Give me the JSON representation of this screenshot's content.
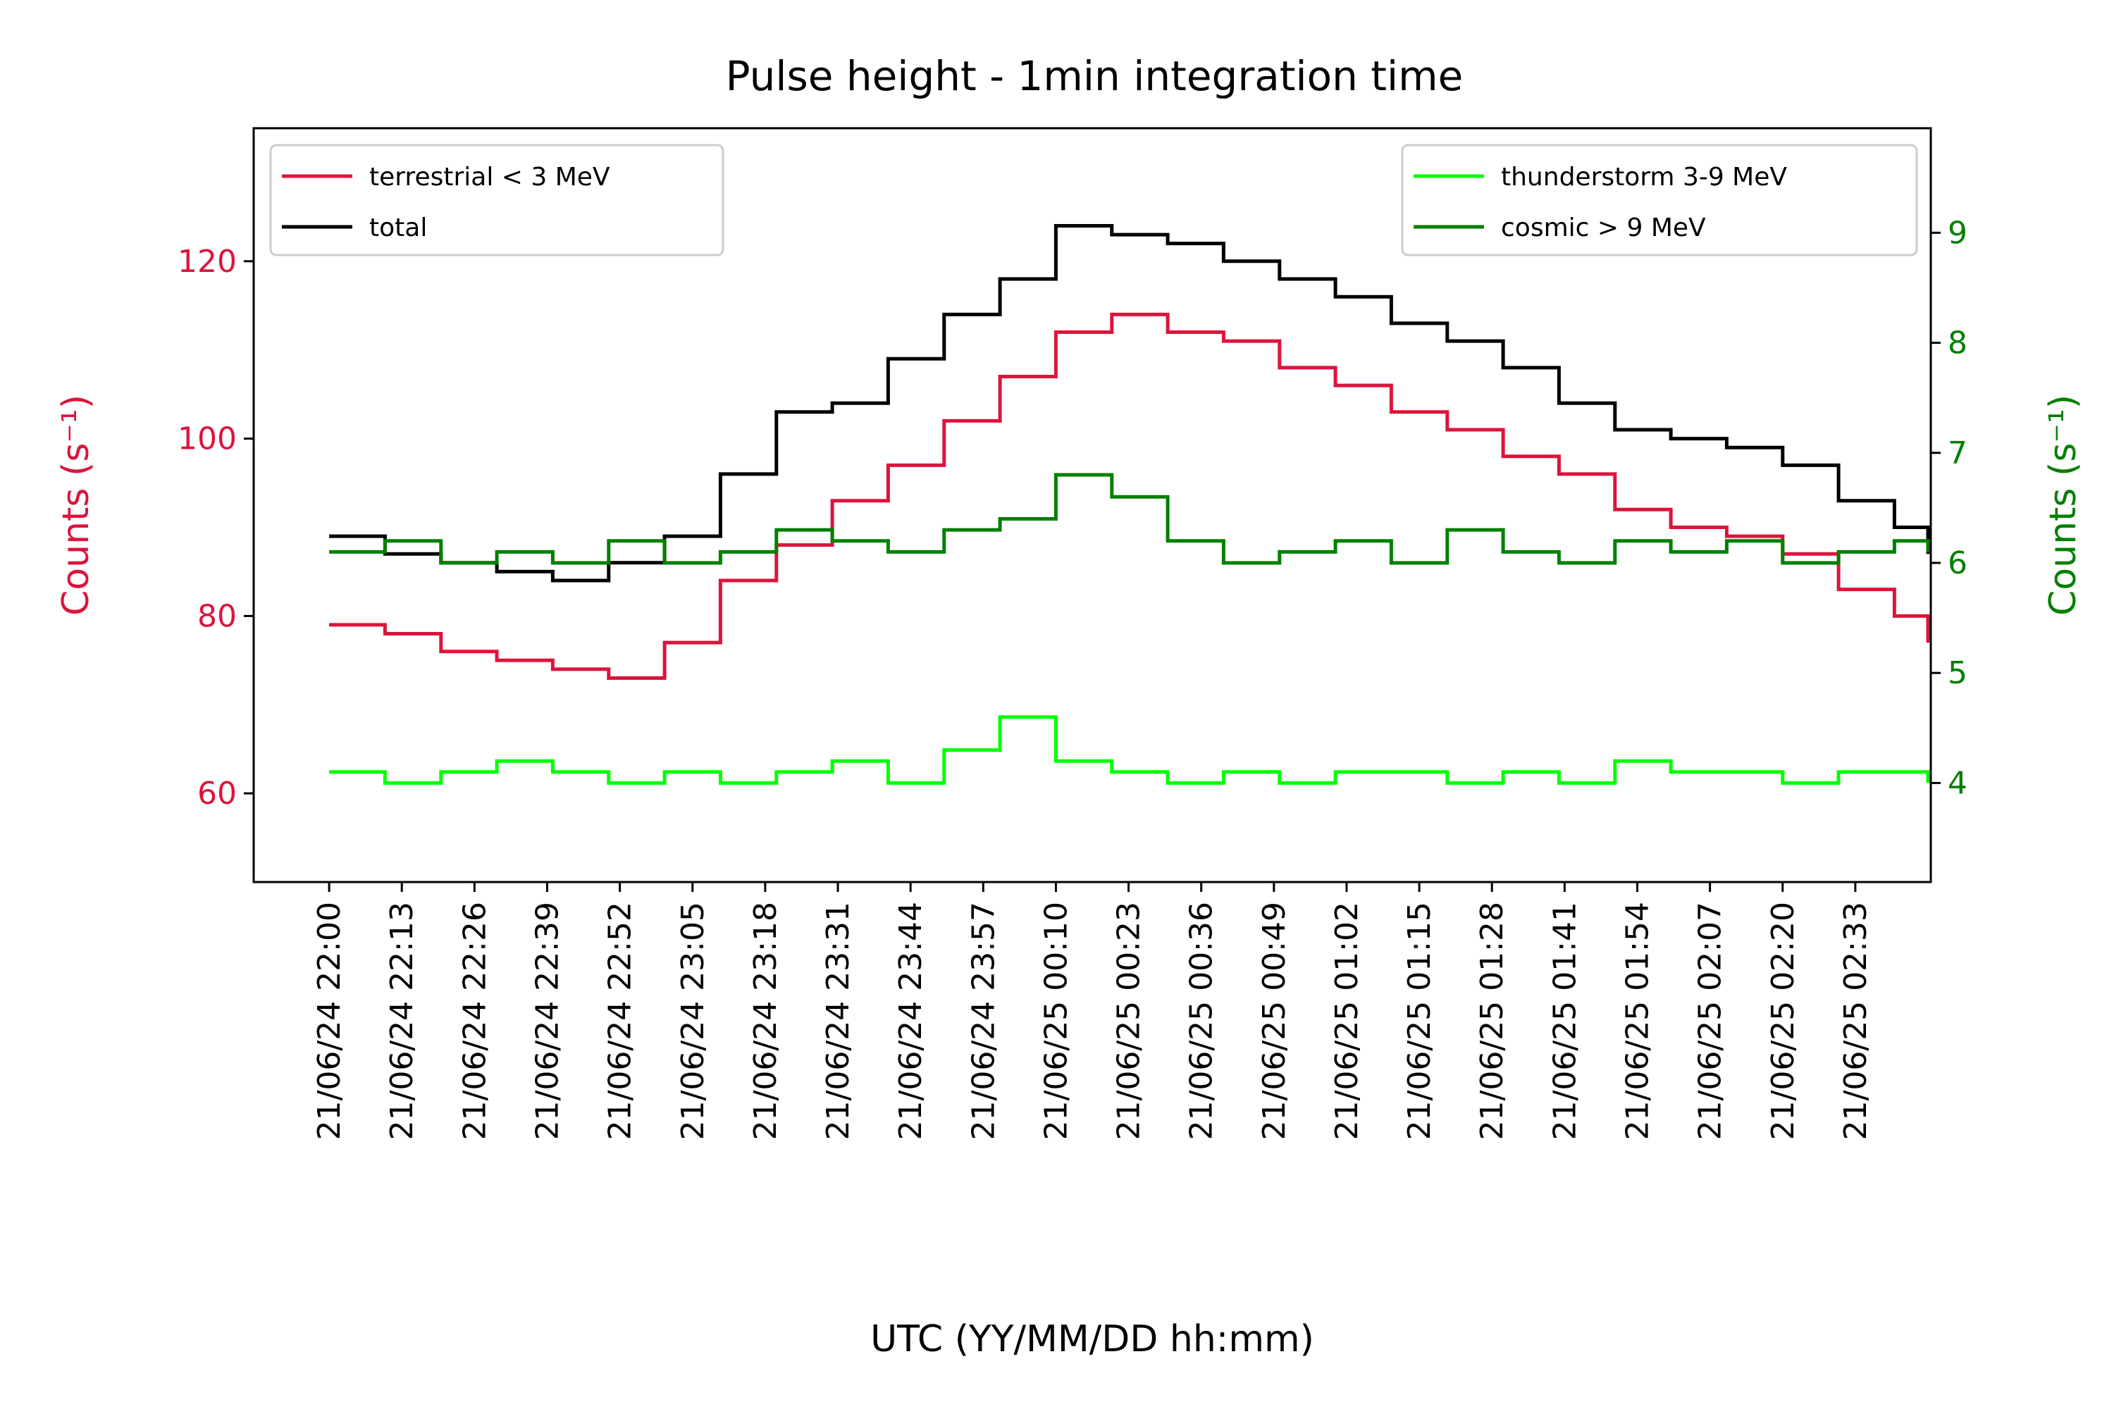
{
  "chart_data": {
    "type": "line",
    "title": "Pulse height - 1min integration time",
    "xlabel": "UTC (YY/MM/DD hh:mm)",
    "ylabel_left": "Counts (s⁻¹)",
    "ylabel_right": "Counts (s⁻¹)",
    "x_ticks": [
      "21/06/24 22:00",
      "21/06/24 22:13",
      "21/06/24 22:26",
      "21/06/24 22:39",
      "21/06/24 22:52",
      "21/06/24 23:05",
      "21/06/24 23:18",
      "21/06/24 23:31",
      "21/06/24 23:44",
      "21/06/24 23:57",
      "21/06/25 00:10",
      "21/06/25 00:23",
      "21/06/25 00:36",
      "21/06/25 00:49",
      "21/06/25 01:02",
      "21/06/25 01:15",
      "21/06/25 01:28",
      "21/06/25 01:41",
      "21/06/25 01:54",
      "21/06/25 02:07",
      "21/06/25 02:20",
      "21/06/25 02:33"
    ],
    "x_range_minutes": [
      -13.5,
      286.5
    ],
    "left_axis": {
      "ylim": [
        50,
        135
      ],
      "ticks": [
        60,
        80,
        100,
        120
      ],
      "color": "#dc143c"
    },
    "right_axis": {
      "ylim": [
        3.1,
        9.95
      ],
      "ticks": [
        4,
        5,
        6,
        7,
        8,
        9
      ],
      "color": "#008000"
    },
    "grid": false,
    "legend_left": {
      "placement": "top-left",
      "entries": [
        {
          "name": "terrestrial < 3 MeV",
          "color": "#dc143c"
        },
        {
          "name": "total",
          "color": "#000000"
        }
      ]
    },
    "legend_right": {
      "placement": "top-right",
      "entries": [
        {
          "name": "thunderstorm 3-9 MeV",
          "color": "#00ff00"
        },
        {
          "name": "cosmic > 9 MeV",
          "color": "#008000"
        }
      ]
    },
    "series": [
      {
        "name": "terrestrial < 3 MeV",
        "axis": "left",
        "color": "#dc143c",
        "x_minutes": [
          0,
          10,
          20,
          30,
          40,
          50,
          60,
          70,
          80,
          90,
          100,
          110,
          120,
          130,
          140,
          150,
          160,
          170,
          180,
          190,
          200,
          210,
          220,
          230,
          240,
          250,
          260,
          270,
          280,
          286
        ],
        "values": [
          79,
          78,
          76,
          75,
          74,
          73,
          77,
          84,
          88,
          93,
          97,
          102,
          107,
          112,
          114,
          112,
          111,
          108,
          106,
          103,
          101,
          98,
          96,
          92,
          90,
          89,
          87,
          83,
          80,
          77
        ]
      },
      {
        "name": "total",
        "axis": "left",
        "color": "#000000",
        "x_minutes": [
          0,
          10,
          20,
          30,
          40,
          50,
          60,
          70,
          80,
          90,
          100,
          110,
          120,
          130,
          140,
          150,
          160,
          170,
          180,
          190,
          200,
          210,
          220,
          230,
          240,
          250,
          260,
          270,
          280,
          286
        ],
        "values": [
          89,
          87,
          86,
          85,
          84,
          86,
          89,
          96,
          103,
          104,
          109,
          114,
          118,
          124,
          123,
          122,
          120,
          118,
          116,
          113,
          111,
          108,
          104,
          101,
          100,
          99,
          97,
          93,
          90,
          87
        ]
      },
      {
        "name": "thunderstorm 3-9 MeV",
        "axis": "right",
        "color": "#00ff00",
        "x_minutes": [
          0,
          10,
          20,
          30,
          40,
          50,
          60,
          70,
          80,
          90,
          100,
          110,
          120,
          130,
          140,
          150,
          160,
          170,
          180,
          190,
          200,
          210,
          220,
          230,
          240,
          250,
          260,
          270,
          280,
          286
        ],
        "values": [
          4.1,
          4.0,
          4.1,
          4.2,
          4.1,
          4.0,
          4.1,
          4.0,
          4.1,
          4.2,
          4.0,
          4.3,
          4.6,
          4.2,
          4.1,
          4.0,
          4.1,
          4.0,
          4.1,
          4.1,
          4.0,
          4.1,
          4.0,
          4.2,
          4.1,
          4.1,
          4.0,
          4.1,
          4.1,
          4.0
        ]
      },
      {
        "name": "cosmic > 9 MeV",
        "axis": "right",
        "color": "#008000",
        "x_minutes": [
          0,
          10,
          20,
          30,
          40,
          50,
          60,
          70,
          80,
          90,
          100,
          110,
          120,
          130,
          140,
          150,
          160,
          170,
          180,
          190,
          200,
          210,
          220,
          230,
          240,
          250,
          260,
          270,
          280,
          286
        ],
        "values": [
          6.1,
          6.2,
          6.0,
          6.1,
          6.0,
          6.2,
          6.0,
          6.1,
          6.3,
          6.2,
          6.1,
          6.3,
          6.4,
          6.8,
          6.6,
          6.2,
          6.0,
          6.1,
          6.2,
          6.0,
          6.3,
          6.1,
          6.0,
          6.2,
          6.1,
          6.2,
          6.0,
          6.1,
          6.2,
          6.1
        ]
      }
    ]
  }
}
